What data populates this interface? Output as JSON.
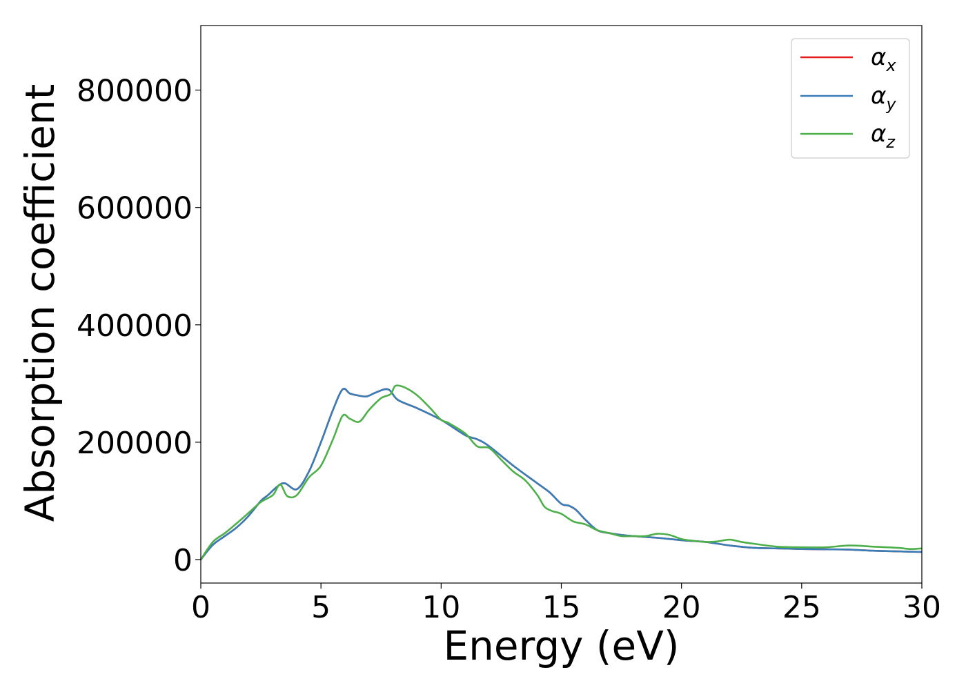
{
  "chart_data": {
    "type": "line",
    "xlabel": "Energy (eV)",
    "ylabel": "Absorption coefficient",
    "xlim": [
      0,
      30
    ],
    "ylim": [
      -40000,
      910000
    ],
    "x_ticks": [
      0,
      5,
      10,
      15,
      20,
      25,
      30
    ],
    "y_ticks": [
      0,
      200000,
      400000,
      600000,
      800000
    ],
    "grid": false,
    "legend_position": "top-right",
    "colors": {
      "alpha_x": "#e41a1c",
      "alpha_y": "#377eb8",
      "alpha_z": "#4daf4a"
    },
    "series": [
      {
        "name": "α_x",
        "label_main": "α",
        "label_sub": "x",
        "x": [
          0,
          0.5,
          1,
          1.5,
          2,
          2.5,
          2.8,
          3.2,
          3.5,
          4,
          4.5,
          5,
          5.5,
          5.9,
          6.2,
          6.5,
          6.9,
          7.3,
          7.8,
          8.2,
          9,
          10,
          11,
          11.5,
          12,
          13,
          14,
          14.5,
          15,
          15.3,
          15.6,
          16,
          16.5,
          17,
          17.5,
          18,
          19,
          20,
          21,
          22,
          23,
          24,
          25,
          26,
          27,
          28,
          29,
          30
        ],
        "y": [
          0,
          25000,
          40000,
          55000,
          75000,
          100000,
          110000,
          125000,
          130000,
          120000,
          150000,
          200000,
          255000,
          290000,
          283000,
          280000,
          278000,
          285000,
          290000,
          272000,
          258000,
          238000,
          212000,
          205000,
          193000,
          160000,
          130000,
          115000,
          95000,
          92000,
          85000,
          68000,
          50000,
          45000,
          42000,
          40000,
          37000,
          33000,
          30000,
          24000,
          20000,
          19000,
          18000,
          17500,
          17000,
          15000,
          14000,
          13000
        ]
      },
      {
        "name": "α_y",
        "label_main": "α",
        "label_sub": "y",
        "x": [
          0,
          0.5,
          1,
          1.5,
          2,
          2.5,
          2.8,
          3.2,
          3.5,
          4,
          4.5,
          5,
          5.5,
          5.9,
          6.2,
          6.5,
          6.9,
          7.3,
          7.8,
          8.2,
          9,
          10,
          11,
          11.5,
          12,
          13,
          14,
          14.5,
          15,
          15.3,
          15.6,
          16,
          16.5,
          17,
          17.5,
          18,
          19,
          20,
          21,
          22,
          23,
          24,
          25,
          26,
          27,
          28,
          29,
          30
        ],
        "y": [
          0,
          25000,
          40000,
          55000,
          75000,
          100000,
          110000,
          125000,
          130000,
          120000,
          150000,
          200000,
          255000,
          290000,
          283000,
          280000,
          278000,
          285000,
          290000,
          272000,
          258000,
          238000,
          212000,
          205000,
          193000,
          160000,
          130000,
          115000,
          95000,
          92000,
          85000,
          68000,
          50000,
          45000,
          42000,
          40000,
          37000,
          33000,
          30000,
          24000,
          20000,
          19000,
          18000,
          17500,
          17000,
          15000,
          14000,
          13000
        ]
      },
      {
        "name": "α_z",
        "label_main": "α",
        "label_sub": "z",
        "x": [
          0,
          0.5,
          1,
          1.5,
          2,
          2.5,
          3,
          3.3,
          3.6,
          4,
          4.5,
          5,
          5.5,
          5.9,
          6.2,
          6.6,
          7,
          7.5,
          7.9,
          8.1,
          8.5,
          9,
          9.5,
          10,
          10.3,
          11,
          11.5,
          12,
          12.5,
          13,
          13.5,
          14,
          14.3,
          14.6,
          15,
          15.5,
          16,
          16.5,
          17,
          17.5,
          18,
          18.5,
          19,
          19.5,
          20,
          20.5,
          21,
          21.5,
          22,
          22.5,
          23,
          24,
          25,
          26,
          27,
          28,
          29,
          29.5,
          30
        ],
        "y": [
          0,
          30000,
          45000,
          62000,
          80000,
          98000,
          110000,
          128000,
          108000,
          110000,
          140000,
          160000,
          205000,
          245000,
          240000,
          235000,
          255000,
          275000,
          282000,
          296000,
          293000,
          280000,
          260000,
          238000,
          233000,
          215000,
          193000,
          190000,
          170000,
          150000,
          135000,
          110000,
          90000,
          83000,
          78000,
          65000,
          60000,
          50000,
          45000,
          40000,
          40000,
          40000,
          44000,
          42000,
          35000,
          32000,
          30000,
          31000,
          34000,
          30000,
          27000,
          22000,
          21000,
          21000,
          24000,
          22000,
          20000,
          18000,
          19000
        ]
      }
    ]
  }
}
